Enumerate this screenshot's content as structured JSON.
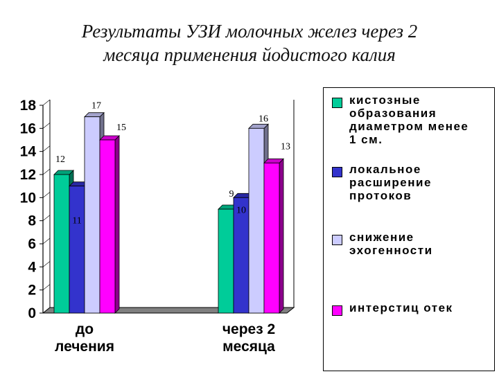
{
  "title_lines": [
    "Результаты УЗИ молочных желез через 2",
    "месяца применения йодистого  калия"
  ],
  "chart_data": {
    "type": "bar",
    "title": "Результаты УЗИ молочных желез через 2 месяца применения йодистого  калия",
    "categories": [
      "до\nлечения",
      "через 2\nмесяца"
    ],
    "ylim": [
      0,
      18
    ],
    "yticks": [
      0,
      2,
      4,
      6,
      8,
      10,
      12,
      14,
      16,
      18
    ],
    "grid": false,
    "legend_position": "right",
    "series": [
      {
        "name": "кистозные\nобразования\nдиаметром менее\n1 см.",
        "color": "#00cc99",
        "values": [
          12,
          9
        ]
      },
      {
        "name": "локальное\nрасширение\nпротоков",
        "color": "#3333cc",
        "values": [
          11,
          10
        ]
      },
      {
        "name": "снижение\nэхогенности",
        "color": "#ccccff",
        "values": [
          17,
          16
        ]
      },
      {
        "name": "интерстиц  отек",
        "color": "#ff00ff",
        "values": [
          15,
          13
        ]
      }
    ]
  }
}
